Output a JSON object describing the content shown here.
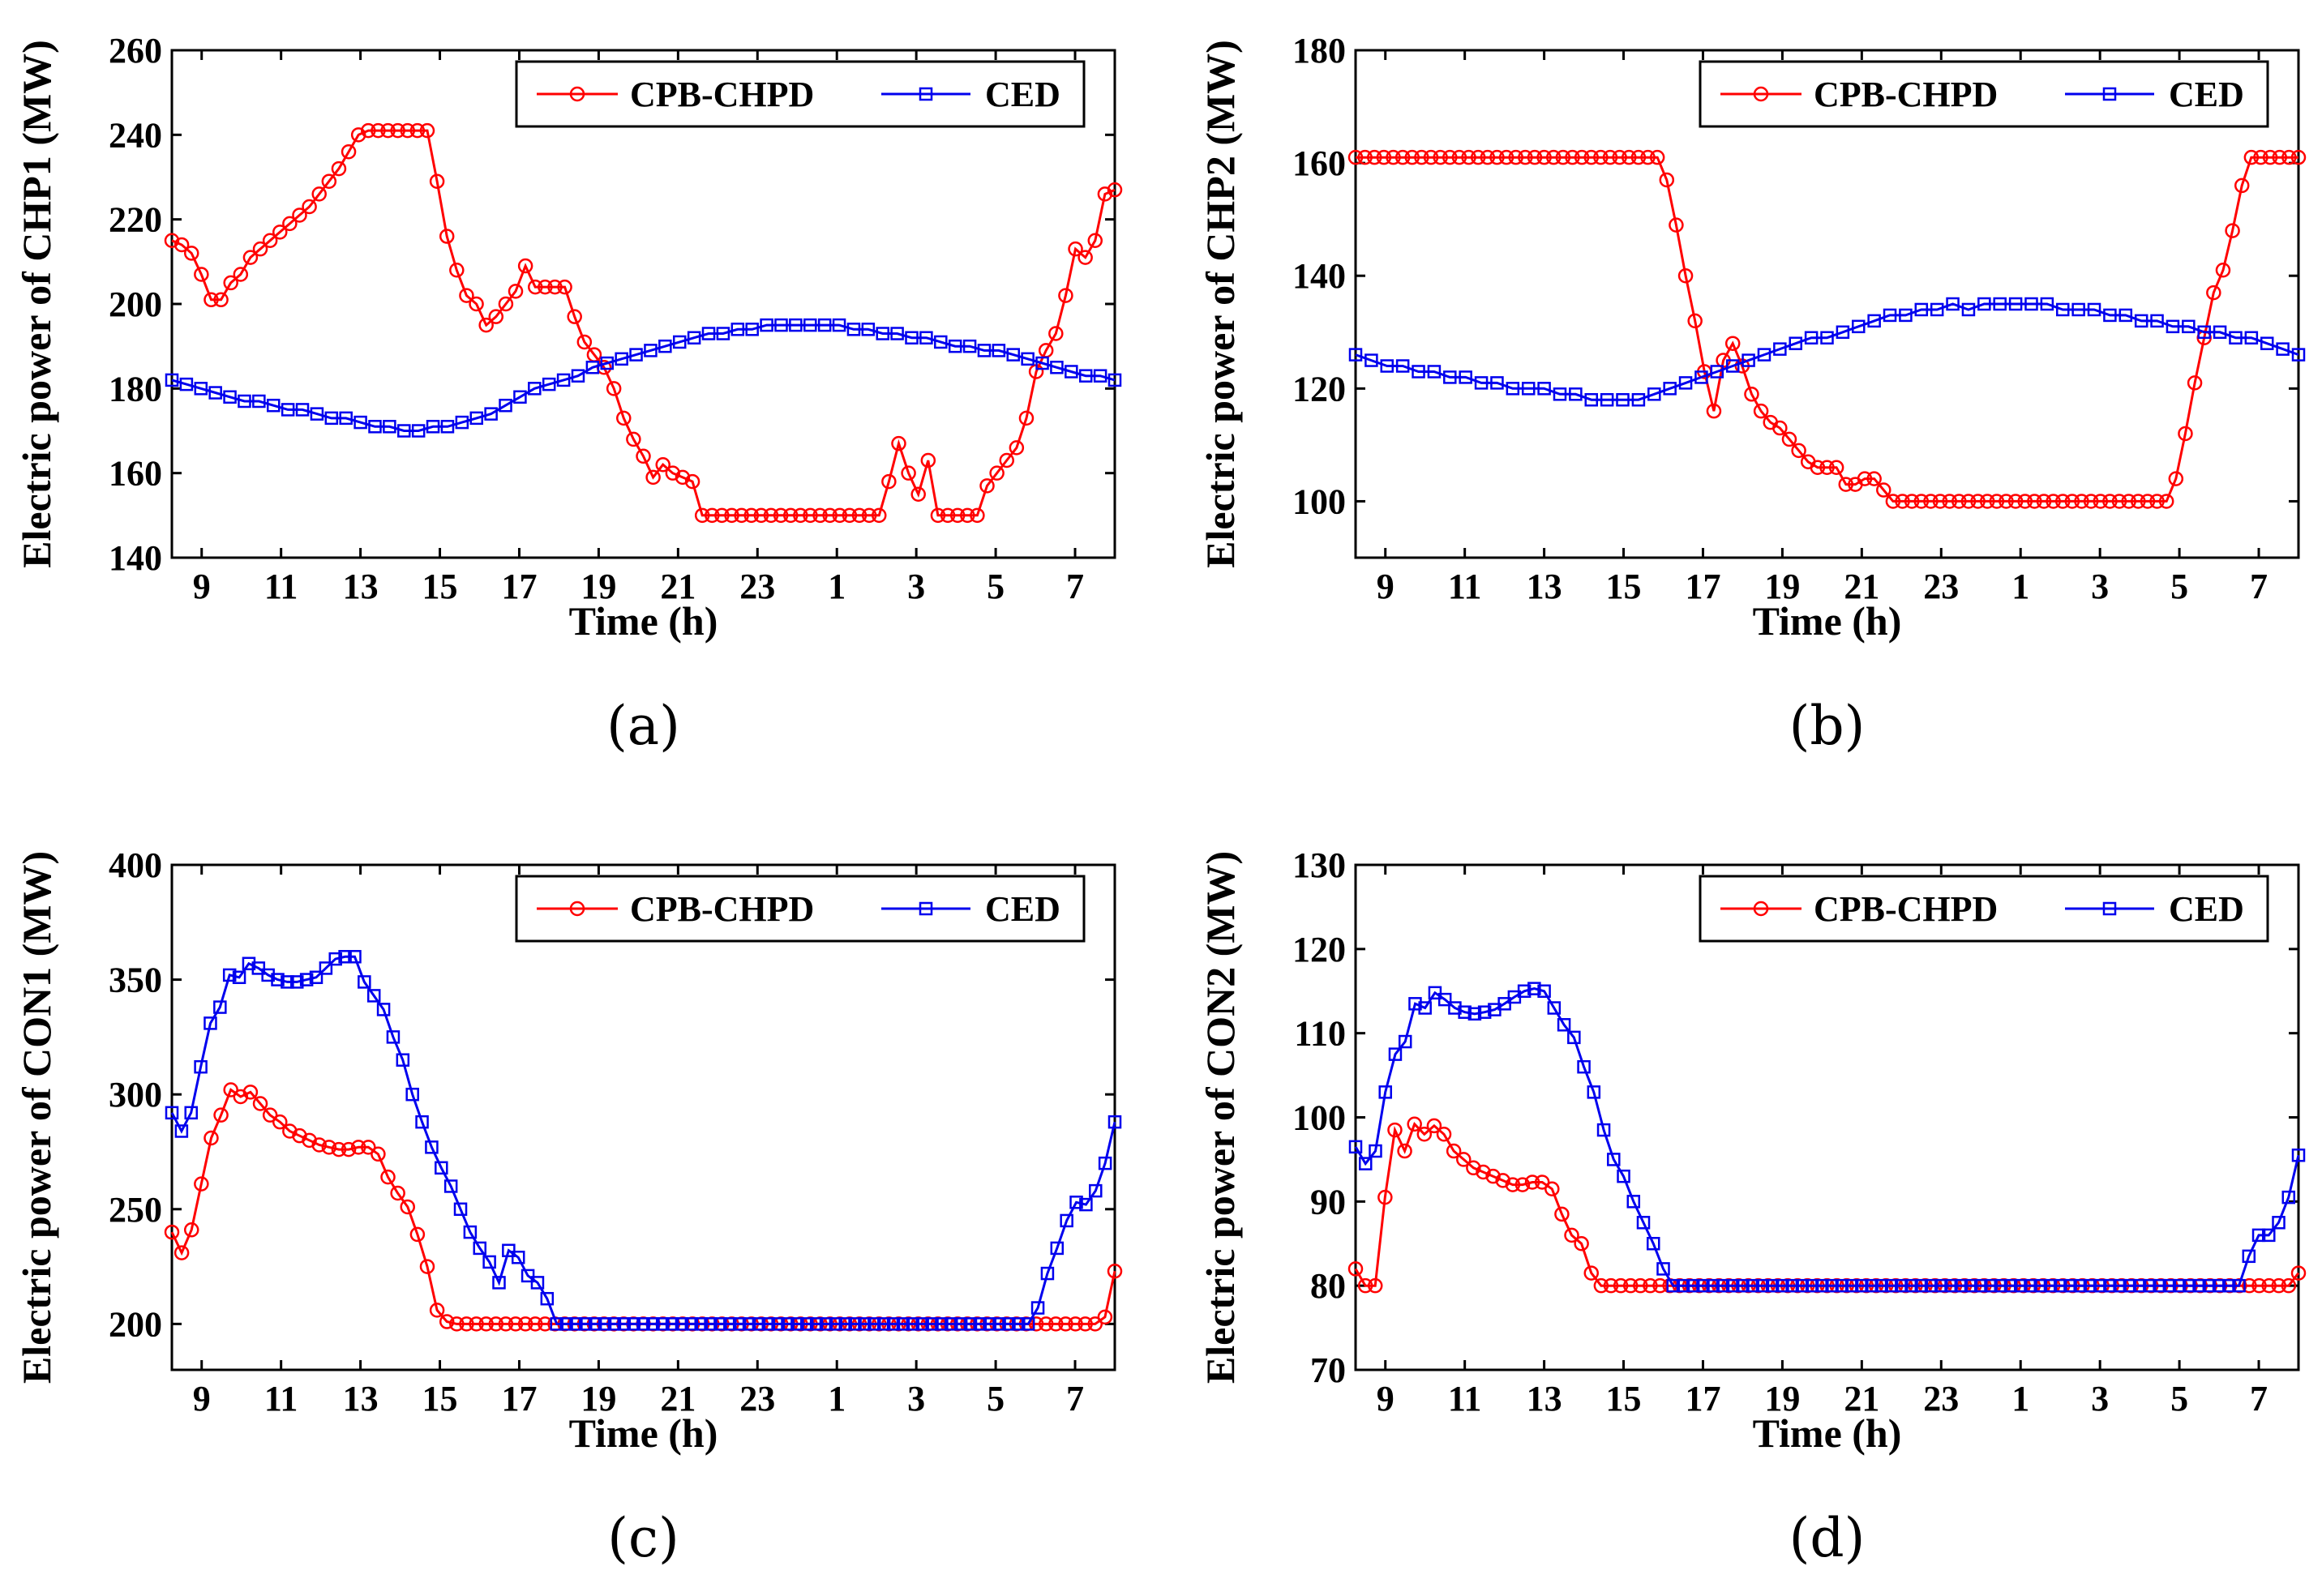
{
  "colors": {
    "cpb": "#ff0000",
    "ced": "#0000ee",
    "axis": "#000000"
  },
  "chart_data": [
    {
      "type": "line",
      "panel_label": "(a)",
      "ylabel": "Electric power of CHP1 (MW)",
      "xlabel": "Time (h)",
      "ylim": [
        140,
        260
      ],
      "yticks": [
        140,
        160,
        180,
        200,
        220,
        240,
        260
      ],
      "xticks": [
        "9",
        "11",
        "13",
        "15",
        "17",
        "19",
        "21",
        "23",
        "1",
        "3",
        "5",
        "7"
      ],
      "legend": [
        "CPB-CHPD",
        "CED"
      ],
      "legend_position": "top-right",
      "series": [
        {
          "name": "CPB-CHPD",
          "values": [
            215,
            214,
            212,
            207,
            201,
            201,
            205,
            207,
            211,
            213,
            215,
            217,
            219,
            221,
            223,
            226,
            229,
            232,
            236,
            240,
            241,
            241,
            241,
            241,
            241,
            241,
            241,
            229,
            216,
            208,
            202,
            200,
            195,
            197,
            200,
            203,
            209,
            204,
            204,
            204,
            204,
            197,
            191,
            188,
            185,
            180,
            173,
            168,
            164,
            159,
            162,
            160,
            159,
            158,
            150,
            150,
            150,
            150,
            150,
            150,
            150,
            150,
            150,
            150,
            150,
            150,
            150,
            150,
            150,
            150,
            150,
            150,
            150,
            158,
            167,
            160,
            155,
            163,
            150,
            150,
            150,
            150,
            150,
            157,
            160,
            163,
            166,
            173,
            184,
            189,
            193,
            202,
            213,
            211,
            215,
            226,
            227
          ]
        },
        {
          "name": "CED",
          "values": [
            182,
            181,
            180,
            179,
            178,
            177,
            177,
            176,
            175,
            175,
            174,
            173,
            173,
            172,
            171,
            171,
            170,
            170,
            171,
            171,
            172,
            173,
            174,
            176,
            178,
            180,
            181,
            182,
            183,
            185,
            186,
            187,
            188,
            189,
            190,
            191,
            192,
            193,
            193,
            194,
            194,
            195,
            195,
            195,
            195,
            195,
            195,
            194,
            194,
            193,
            193,
            192,
            192,
            191,
            190,
            190,
            189,
            189,
            188,
            187,
            186,
            185,
            184,
            183,
            183,
            182
          ]
        }
      ]
    },
    {
      "type": "line",
      "panel_label": "(b)",
      "ylabel": "Electric power of CHP2 (MW)",
      "xlabel": "Time (h)",
      "ylim": [
        90,
        180
      ],
      "yticks": [
        100,
        120,
        140,
        160,
        180
      ],
      "xticks": [
        "9",
        "11",
        "13",
        "15",
        "17",
        "19",
        "21",
        "23",
        "1",
        "3",
        "5",
        "7"
      ],
      "legend": [
        "CPB-CHPD",
        "CED"
      ],
      "legend_position": "top-right",
      "series": [
        {
          "name": "CPB-CHPD",
          "values": [
            161,
            161,
            161,
            161,
            161,
            161,
            161,
            161,
            161,
            161,
            161,
            161,
            161,
            161,
            161,
            161,
            161,
            161,
            161,
            161,
            161,
            161,
            161,
            161,
            161,
            161,
            161,
            161,
            161,
            161,
            161,
            161,
            161,
            157,
            149,
            140,
            132,
            123,
            116,
            125,
            128,
            124,
            119,
            116,
            114,
            113,
            111,
            109,
            107,
            106,
            106,
            106,
            103,
            103,
            104,
            104,
            102,
            100,
            100,
            100,
            100,
            100,
            100,
            100,
            100,
            100,
            100,
            100,
            100,
            100,
            100,
            100,
            100,
            100,
            100,
            100,
            100,
            100,
            100,
            100,
            100,
            100,
            100,
            100,
            100,
            100,
            100,
            104,
            112,
            121,
            129,
            137,
            141,
            148,
            156,
            161,
            161,
            161,
            161,
            161,
            161
          ]
        },
        {
          "name": "CED",
          "values": [
            126,
            125,
            124,
            124,
            123,
            123,
            122,
            122,
            121,
            121,
            120,
            120,
            120,
            119,
            119,
            118,
            118,
            118,
            118,
            119,
            120,
            121,
            122,
            123,
            124,
            125,
            126,
            127,
            128,
            129,
            129,
            130,
            131,
            132,
            133,
            133,
            134,
            134,
            135,
            134,
            135,
            135,
            135,
            135,
            135,
            134,
            134,
            134,
            133,
            133,
            132,
            132,
            131,
            131,
            130,
            130,
            129,
            129,
            128,
            127,
            126
          ]
        }
      ]
    },
    {
      "type": "line",
      "panel_label": "(c)",
      "ylabel": "Electric power of CON1 (MW)",
      "xlabel": "Time (h)",
      "ylim": [
        180,
        400
      ],
      "yticks": [
        200,
        250,
        300,
        350,
        400
      ],
      "xticks": [
        "9",
        "11",
        "13",
        "15",
        "17",
        "19",
        "21",
        "23",
        "1",
        "3",
        "5",
        "7"
      ],
      "legend": [
        "CPB-CHPD",
        "CED"
      ],
      "legend_position": "top-right",
      "series": [
        {
          "name": "CPB-CHPD",
          "values": [
            240,
            231,
            241,
            261,
            281,
            291,
            302,
            299,
            301,
            296,
            291,
            288,
            284,
            282,
            280,
            278,
            277,
            276,
            276,
            277,
            277,
            274,
            264,
            257,
            251,
            239,
            225,
            206,
            201,
            200,
            200,
            200,
            200,
            200,
            200,
            200,
            200,
            200,
            200,
            200,
            200,
            200,
            200,
            200,
            200,
            200,
            200,
            200,
            200,
            200,
            200,
            200,
            200,
            200,
            200,
            200,
            200,
            200,
            200,
            200,
            200,
            200,
            200,
            200,
            200,
            200,
            200,
            200,
            200,
            200,
            200,
            200,
            200,
            200,
            200,
            200,
            200,
            200,
            200,
            200,
            200,
            200,
            200,
            200,
            200,
            200,
            200,
            200,
            200,
            200,
            200,
            200,
            200,
            200,
            200,
            203,
            223
          ]
        },
        {
          "name": "CED",
          "values": [
            292,
            284,
            292,
            312,
            331,
            338,
            352,
            351,
            357,
            355,
            352,
            350,
            349,
            349,
            350,
            351,
            355,
            359,
            360,
            360,
            349,
            343,
            337,
            325,
            315,
            300,
            288,
            277,
            268,
            260,
            250,
            240,
            233,
            227,
            218,
            232,
            229,
            221,
            218,
            211,
            200,
            200,
            200,
            200,
            200,
            200,
            200,
            200,
            200,
            200,
            200,
            200,
            200,
            200,
            200,
            200,
            200,
            200,
            200,
            200,
            200,
            200,
            200,
            200,
            200,
            200,
            200,
            200,
            200,
            200,
            200,
            200,
            200,
            200,
            200,
            200,
            200,
            200,
            200,
            200,
            200,
            200,
            200,
            200,
            200,
            200,
            200,
            200,
            200,
            200,
            207,
            222,
            233,
            245,
            253,
            252,
            258,
            270,
            288
          ]
        }
      ]
    },
    {
      "type": "line",
      "panel_label": "(d)",
      "ylabel": "Electric power of CON2 (MW)",
      "xlabel": "Time (h)",
      "ylim": [
        70,
        130
      ],
      "yticks": [
        70,
        80,
        90,
        100,
        110,
        120,
        130
      ],
      "xticks": [
        "9",
        "11",
        "13",
        "15",
        "17",
        "19",
        "21",
        "23",
        "1",
        "3",
        "5",
        "7"
      ],
      "legend": [
        "CPB-CHPD",
        "CED"
      ],
      "legend_position": "top-right",
      "series": [
        {
          "name": "CPB-CHPD",
          "values": [
            82,
            80,
            80,
            90.5,
            98.5,
            96,
            99.2,
            98,
            99,
            98,
            96,
            95,
            94,
            93.5,
            93,
            92.5,
            92,
            92,
            92.3,
            92.3,
            91.5,
            88.5,
            86,
            85,
            81.5,
            80,
            80,
            80,
            80,
            80,
            80,
            80,
            80,
            80,
            80,
            80,
            80,
            80,
            80,
            80,
            80,
            80,
            80,
            80,
            80,
            80,
            80,
            80,
            80,
            80,
            80,
            80,
            80,
            80,
            80,
            80,
            80,
            80,
            80,
            80,
            80,
            80,
            80,
            80,
            80,
            80,
            80,
            80,
            80,
            80,
            80,
            80,
            80,
            80,
            80,
            80,
            80,
            80,
            80,
            80,
            80,
            80,
            80,
            80,
            80,
            80,
            80,
            80,
            80,
            80,
            80,
            80,
            80,
            80,
            80,
            80,
            81.5
          ]
        },
        {
          "name": "CED",
          "values": [
            96.5,
            94.5,
            96,
            103,
            107.5,
            109,
            113.5,
            113,
            114.8,
            114,
            113,
            112.5,
            112.3,
            112.5,
            112.8,
            113.5,
            114.3,
            115,
            115.3,
            115,
            113,
            111,
            109.5,
            106,
            103,
            98.5,
            95,
            93,
            90,
            87.5,
            85,
            82,
            80,
            80,
            80,
            80,
            80,
            80,
            80,
            80,
            80,
            80,
            80,
            80,
            80,
            80,
            80,
            80,
            80,
            80,
            80,
            80,
            80,
            80,
            80,
            80,
            80,
            80,
            80,
            80,
            80,
            80,
            80,
            80,
            80,
            80,
            80,
            80,
            80,
            80,
            80,
            80,
            80,
            80,
            80,
            80,
            80,
            80,
            80,
            80,
            80,
            80,
            80,
            80,
            80,
            80,
            80,
            80,
            80,
            80,
            83.5,
            86,
            86,
            87.5,
            90.5,
            95.5
          ]
        }
      ]
    }
  ]
}
